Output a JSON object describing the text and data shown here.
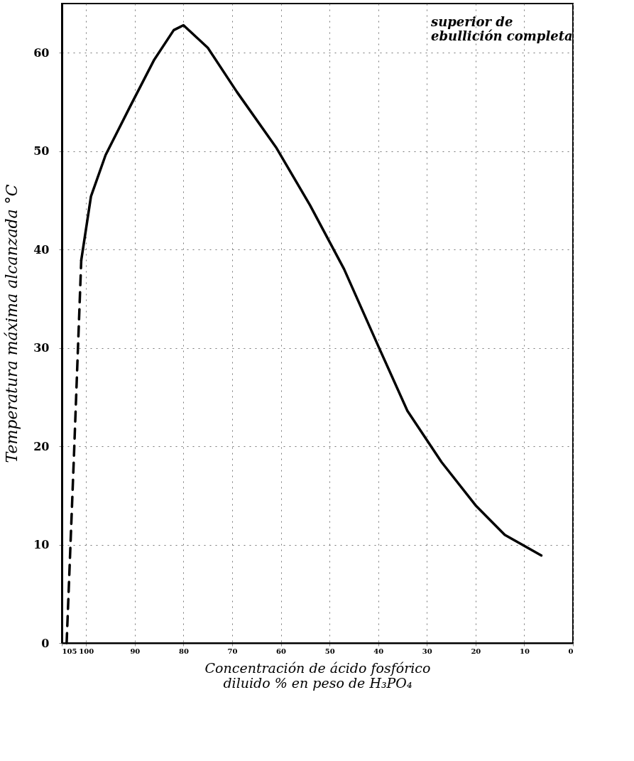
{
  "chart_data": {
    "type": "line",
    "xlabel": "Concentración de ácido fosfórico\ndiluido % en peso de H₃PO₄",
    "ylabel": "Temperatura máxima alcanzada °C",
    "annotations": [
      "superior de\nebullición completa"
    ],
    "xlim": [
      105,
      0
    ],
    "xticks": [
      105,
      100,
      90,
      80,
      70,
      60,
      50,
      40,
      30,
      20,
      10,
      0
    ],
    "ylim": [
      0,
      65
    ],
    "yticks": [
      0,
      10,
      20,
      30,
      40,
      50,
      60
    ],
    "grid": true,
    "marker": "none",
    "series": [
      {
        "color": "#000000",
        "line_style": "dashed",
        "x": [
          104,
          102.5,
          101
        ],
        "values": [
          0,
          19,
          38.9
        ]
      },
      {
        "color": "#000000",
        "line_style": "solid",
        "x": [
          101,
          99,
          96,
          91,
          86,
          82,
          80,
          75,
          69,
          61,
          54,
          47,
          40,
          34,
          27,
          20,
          14,
          6.5
        ],
        "values": [
          38.9,
          45.4,
          49.6,
          54.5,
          59.3,
          62.3,
          62.8,
          60.5,
          56,
          50.4,
          44.5,
          38,
          30.2,
          23.6,
          18.4,
          14,
          11,
          8.9
        ]
      }
    ]
  }
}
